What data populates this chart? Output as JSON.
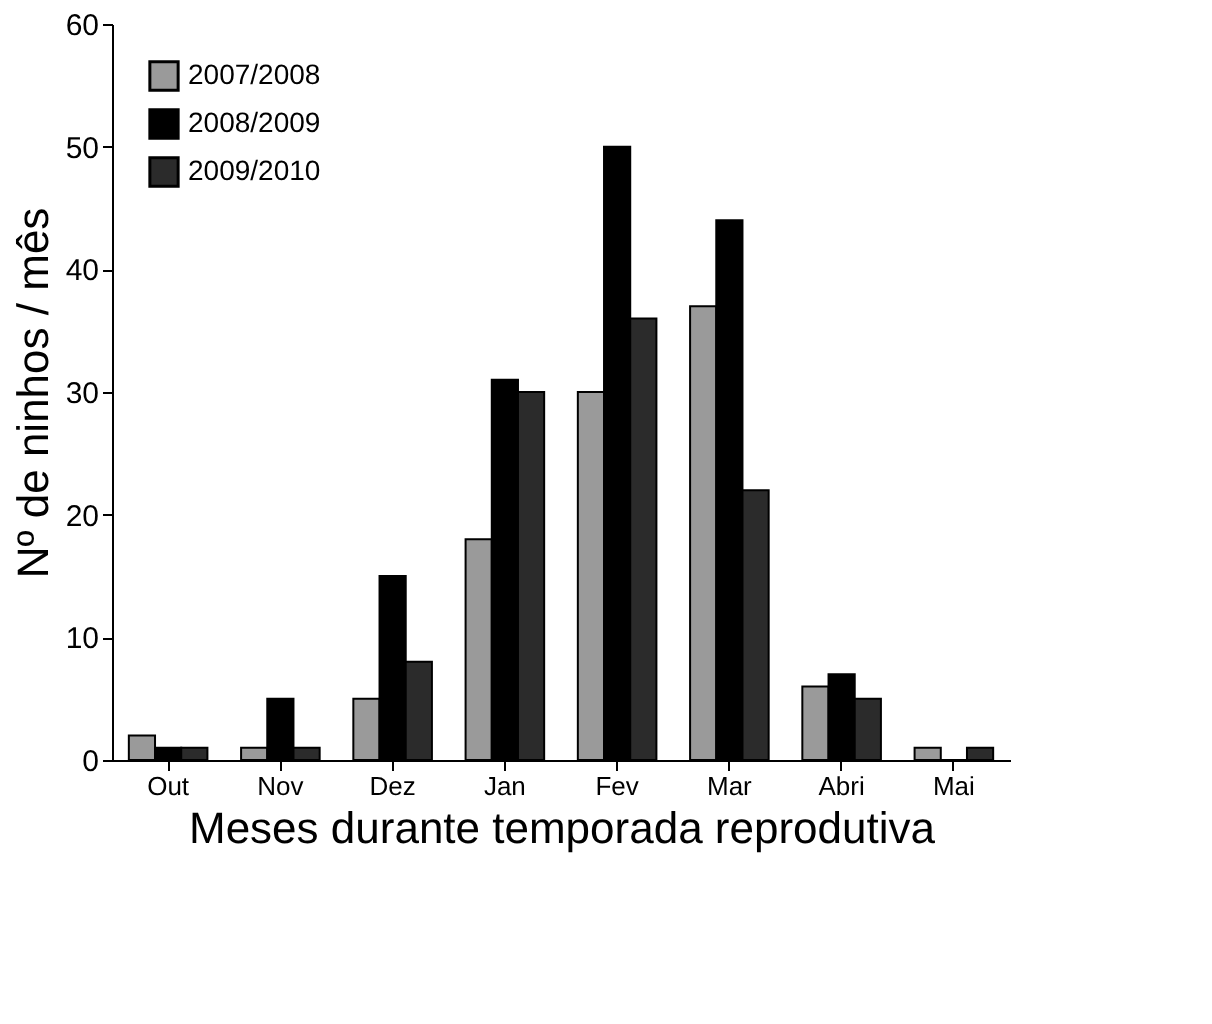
{
  "chart_data": {
    "type": "bar",
    "xlabel": "Meses durante temporada reprodutiva",
    "ylabel": "Nº de ninhos / mês",
    "categories": [
      "Out",
      "Nov",
      "Dez",
      "Jan",
      "Fev",
      "Mar",
      "Abri",
      "Mai"
    ],
    "series": [
      {
        "name": "2007/2008",
        "color": "#9a9a9a",
        "values": [
          2,
          1,
          5,
          18,
          30,
          37,
          6,
          1
        ]
      },
      {
        "name": "2008/2009",
        "color": "#000000",
        "values": [
          1,
          5,
          15,
          31,
          50,
          44,
          7,
          0
        ]
      },
      {
        "name": "2009/2010",
        "color": "#2b2b2b",
        "values": [
          1,
          1,
          8,
          30,
          36,
          22,
          5,
          1
        ]
      }
    ],
    "ylim": [
      0,
      60
    ],
    "yticks": [
      0,
      10,
      20,
      30,
      40,
      50,
      60
    ],
    "grid": false,
    "legend": "top left"
  }
}
